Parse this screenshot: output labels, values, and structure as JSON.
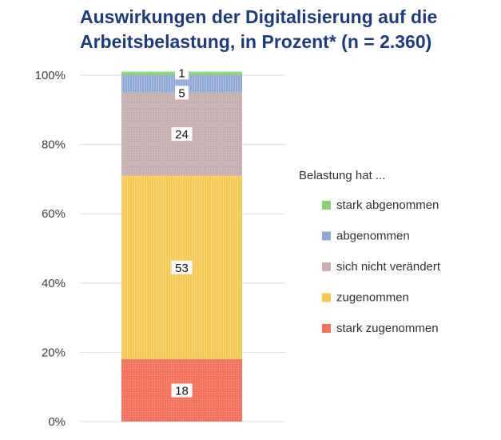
{
  "title_line1": "Auswirkungen der Digitalisierung auf die",
  "title_line2": "Arbeitsbelastung, in Prozent* (n = 2.360)",
  "chart_data": {
    "type": "bar",
    "stacked": true,
    "title": "Auswirkungen der Digitalisierung auf die Arbeitsbelastung, in Prozent* (n = 2.360)",
    "ylim": [
      0,
      100
    ],
    "yticks": [
      "0%",
      "20%",
      "40%",
      "60%",
      "80%",
      "100%"
    ],
    "grid": true,
    "legend_title": "Belastung hat ...",
    "legend_position": "right",
    "series": [
      {
        "name": "stark zugenommen",
        "value": 18,
        "color": "#f4735f"
      },
      {
        "name": "zugenommen",
        "value": 53,
        "color": "#f5c951"
      },
      {
        "name": "sich nicht verändert",
        "value": 24,
        "color": "#c6b0b0"
      },
      {
        "name": "abgenommen",
        "value": 5,
        "color": "#90a8d6"
      },
      {
        "name": "stark abgenommen",
        "value": 1,
        "color": "#8ed07a"
      }
    ],
    "legend_order": [
      "stark abgenommen",
      "abgenommen",
      "sich nicht verändert",
      "zugenommen",
      "stark zugenommen"
    ]
  }
}
